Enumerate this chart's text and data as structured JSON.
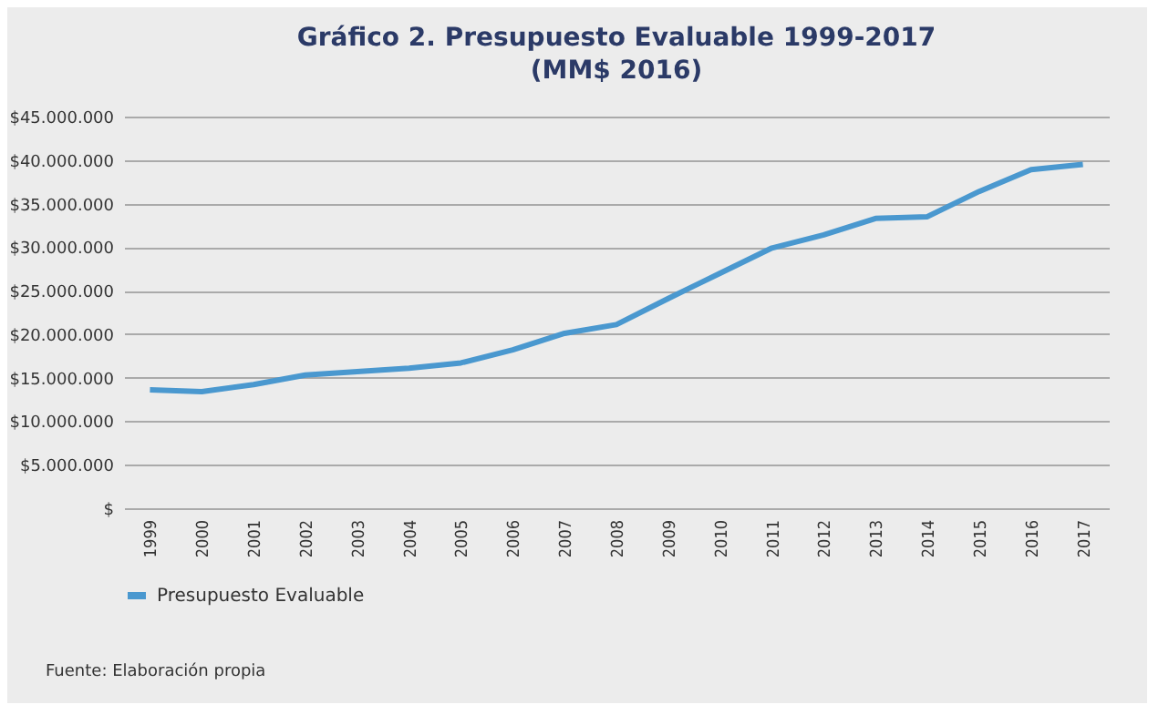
{
  "chart_data": {
    "type": "line",
    "title": "Gráfico 2. Presupuesto Evaluable 1999-2017",
    "subtitle": "(MM$ 2016)",
    "categories": [
      "1999",
      "2000",
      "2001",
      "2002",
      "2003",
      "2004",
      "2005",
      "2006",
      "2007",
      "2008",
      "2009",
      "2010",
      "2011",
      "2012",
      "2013",
      "2014",
      "2015",
      "2016",
      "2017"
    ],
    "series": [
      {
        "name": "Presupuesto Evaluable",
        "color": "#4a98cf",
        "values": [
          13600000,
          13400000,
          14200000,
          15300000,
          15700000,
          16100000,
          16700000,
          18200000,
          20100000,
          21100000,
          24100000,
          27000000,
          29900000,
          31400000,
          33300000,
          33500000,
          36400000,
          38900000,
          39500000
        ]
      }
    ],
    "ylim": [
      0,
      45000000
    ],
    "yticks": [
      {
        "value": 0,
        "label": "$"
      },
      {
        "value": 5000000,
        "label": "$5.000.000"
      },
      {
        "value": 10000000,
        "label": "$10.000.000"
      },
      {
        "value": 15000000,
        "label": "$15.000.000"
      },
      {
        "value": 20000000,
        "label": "$20.000.000"
      },
      {
        "value": 25000000,
        "label": "$25.000.000"
      },
      {
        "value": 30000000,
        "label": "$30.000.000"
      },
      {
        "value": 35000000,
        "label": "$35.000.000"
      },
      {
        "value": 40000000,
        "label": "$40.000.000"
      },
      {
        "value": 45000000,
        "label": "$45.000.000"
      }
    ],
    "grid": "y",
    "legend": "bottom",
    "marker": "none",
    "line_style": "solid",
    "annotations": [
      "Fuente: Elaboración propia"
    ]
  }
}
